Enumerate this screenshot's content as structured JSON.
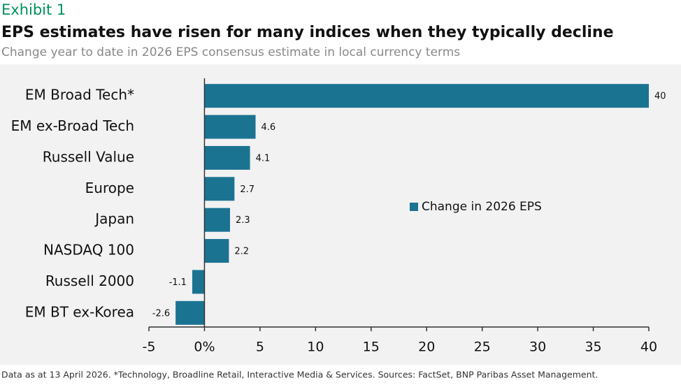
{
  "chart_data": {
    "type": "hbar",
    "label": "Exhibit 1",
    "title": "EPS estimates have risen for many indices when they typically decline",
    "subtitle": "Change year to date in 2026 EPS consensus estimate in local currency terms",
    "note": "Data as at 13 April 2026. *Technology, Broadline Retail, Interactive Media & Services. Sources: FactSet, BNP Paribas Asset Management.",
    "categories": [
      "EM Broad Tech*",
      "EM ex-Broad Tech",
      "Russell Value",
      "Europe",
      "Japan",
      "NASDAQ 100",
      "Russell 2000",
      "EM BT ex-Korea"
    ],
    "series": [
      {
        "name": "Change in 2026 EPS",
        "color": "#1b7392",
        "values": [
          40,
          4.6,
          4.1,
          2.7,
          2.3,
          2.2,
          -1.1,
          -2.6
        ]
      }
    ],
    "xlim": [
      -5,
      40
    ],
    "xticks": [
      -5,
      {
        "value": 0,
        "label": "0%"
      },
      5,
      10,
      15,
      20,
      25,
      30,
      35,
      40
    ],
    "legend": "right"
  }
}
